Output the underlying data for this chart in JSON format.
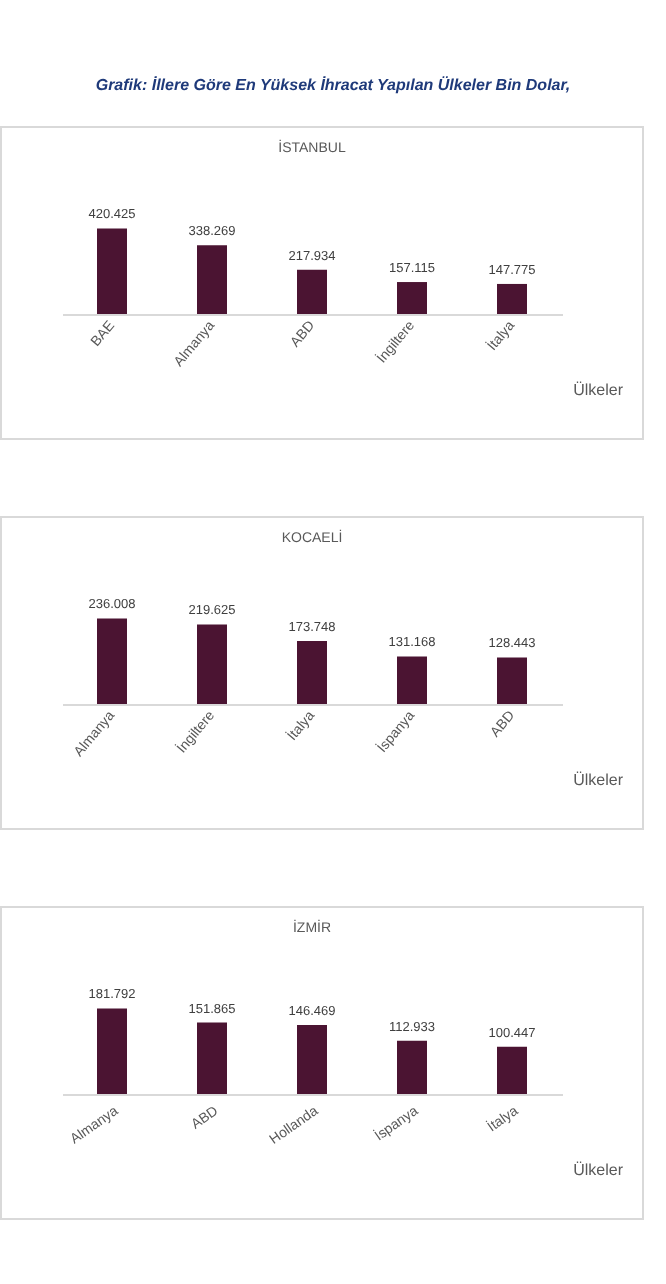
{
  "chart_data": [
    {
      "type": "bar",
      "title": "İSTANBUL",
      "xlabel": "Ülkeler",
      "annotations": [
        "Grafik: İllere Göre En Yüksek İhracat Yapılan Ülkeler Bin Dolar,"
      ],
      "categories": [
        "BAE",
        "Almanya",
        "ABD",
        "İngiltere",
        "İtalya"
      ],
      "values": [
        420425,
        338269,
        217934,
        157115,
        147775
      ],
      "value_labels": [
        "420.425",
        "338.269",
        "217.934",
        "157.115",
        "147.775"
      ],
      "color": "#4b1432"
    },
    {
      "type": "bar",
      "title": "KOCAELİ",
      "xlabel": "Ülkeler",
      "categories": [
        "Almanya",
        "İngiltere",
        "İtalya",
        "İspanya",
        "ABD"
      ],
      "values": [
        236008,
        219625,
        173748,
        131168,
        128443
      ],
      "value_labels": [
        "236.008",
        "219.625",
        "173.748",
        "131.168",
        "128.443"
      ],
      "color": "#4b1432"
    },
    {
      "type": "bar",
      "title": "İZMİR",
      "xlabel": "Ülkeler",
      "categories": [
        "Almanya",
        "ABD",
        "Hollanda",
        "İspanya",
        "İtalya"
      ],
      "values": [
        181792,
        151865,
        146469,
        112933,
        100447
      ],
      "value_labels": [
        "181.792",
        "151.865",
        "146.469",
        "112.933",
        "100.447"
      ],
      "color": "#4b1432"
    }
  ]
}
